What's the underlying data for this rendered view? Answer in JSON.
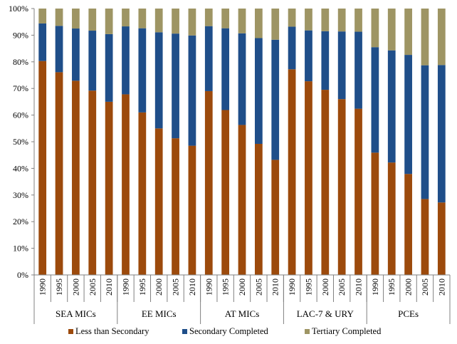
{
  "chart_data": {
    "type": "bar",
    "stacked": true,
    "groups": [
      {
        "name": "SEA MICs",
        "years": [
          "1990",
          "1995",
          "2000",
          "2005",
          "2010"
        ]
      },
      {
        "name": "EE MICs",
        "years": [
          "1990",
          "1995",
          "2000",
          "2005",
          "2010"
        ]
      },
      {
        "name": "AT MICs",
        "years": [
          "1990",
          "1995",
          "2000",
          "2005",
          "2010"
        ]
      },
      {
        "name": "LAC-7 & URY",
        "years": [
          "1990",
          "1995",
          "2000",
          "2005",
          "2010"
        ]
      },
      {
        "name": "PCEs",
        "years": [
          "1990",
          "1995",
          "2000",
          "2005",
          "2010"
        ]
      }
    ],
    "series": [
      {
        "name": "Less than Secondary",
        "color": "#9C4A0C",
        "values": [
          80.3,
          76.1,
          72.9,
          69.2,
          65.0,
          67.8,
          61.0,
          55.0,
          51.3,
          48.5,
          69.0,
          61.9,
          56.3,
          49.2,
          43.2,
          77.2,
          72.7,
          69.5,
          66.0,
          62.4,
          45.9,
          42.2,
          37.9,
          28.5,
          27.2
        ]
      },
      {
        "name": "Secondary Completed",
        "color": "#1F4E89",
        "values": [
          14.1,
          17.4,
          19.6,
          22.5,
          25.4,
          25.5,
          31.6,
          36.1,
          39.3,
          41.4,
          24.4,
          30.7,
          34.4,
          39.7,
          45.1,
          16.0,
          19.1,
          22.0,
          25.4,
          28.9,
          39.6,
          42.1,
          44.7,
          50.2,
          51.6
        ]
      },
      {
        "name": "Tertiary Completed",
        "color": "#9E9564",
        "values": [
          5.6,
          6.5,
          7.5,
          8.3,
          9.6,
          6.7,
          7.4,
          8.9,
          9.4,
          10.1,
          6.6,
          7.4,
          9.3,
          11.1,
          11.7,
          6.8,
          8.2,
          8.5,
          8.6,
          8.7,
          14.5,
          15.7,
          17.4,
          21.3,
          21.2
        ]
      }
    ],
    "y_ticks": [
      "0%",
      "10%",
      "20%",
      "30%",
      "40%",
      "50%",
      "60%",
      "70%",
      "80%",
      "90%",
      "100%"
    ],
    "ylim": [
      0,
      100
    ],
    "grid": false,
    "legend_position": "bottom"
  }
}
